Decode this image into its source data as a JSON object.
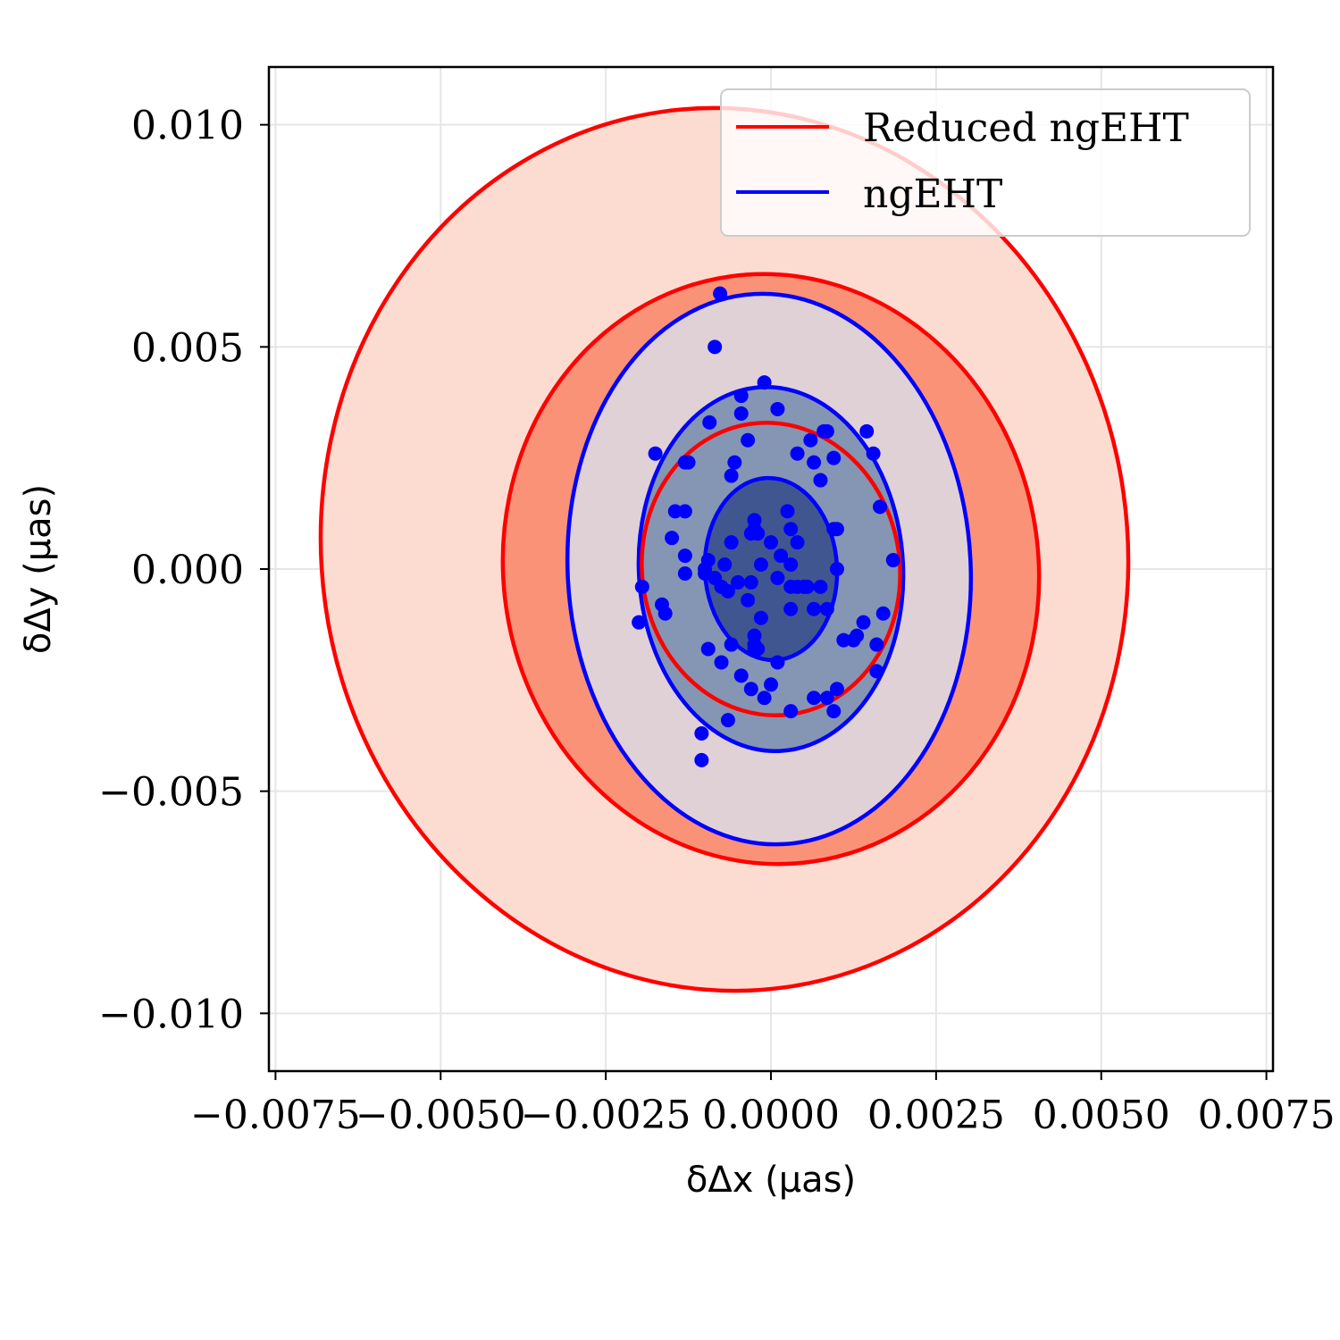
{
  "chart_data": {
    "type": "scatter",
    "xlabel": "δΔx (μas)",
    "ylabel": "δΔy (μas)",
    "xlim": [
      -0.0076,
      0.0076
    ],
    "ylim": [
      -0.0113,
      0.0113
    ],
    "xticks": [
      -0.0075,
      -0.005,
      -0.0025,
      0.0,
      0.0025,
      0.005,
      0.0075
    ],
    "xtick_labels": [
      "−0.0075",
      "−0.0050",
      "−0.0025",
      "0.0000",
      "0.0025",
      "0.0050",
      "0.0075"
    ],
    "yticks": [
      0.01,
      0.005,
      0.0,
      -0.005,
      -0.01
    ],
    "ytick_labels": [
      "0.010",
      "0.005",
      "0.000",
      "−0.005",
      "−0.010"
    ],
    "grid": true,
    "legend": {
      "placement": "top-right",
      "entries": [
        {
          "label": "Reduced ngEHT",
          "color": "#ff0000"
        },
        {
          "label": "ngEHT",
          "color": "#0000ff"
        }
      ]
    },
    "contours": [
      {
        "series": "Reduced ngEHT",
        "level": "outer",
        "cx": 0.0,
        "cy": 0.0,
        "rx": 0.0061,
        "ry": 0.00995,
        "rotation_deg": -8,
        "fill": "#fcdcd0",
        "stroke": "#ff0000"
      },
      {
        "series": "Reduced ngEHT",
        "level": "middle",
        "cx": 0.0,
        "cy": 0.0,
        "rx": 0.00405,
        "ry": 0.00665,
        "rotation_deg": -8,
        "fill": "#fa9278",
        "stroke": "#ff0000"
      },
      {
        "series": "ngEHT",
        "level": "outer",
        "cx": 0.0,
        "cy": 0.0,
        "rx": 0.00305,
        "ry": 0.0062,
        "rotation_deg": -3,
        "fill": "#dfd1d6",
        "stroke": "#0000ff"
      },
      {
        "series": "ngEHT",
        "level": "middle",
        "cx": 0.0,
        "cy": 0.0,
        "rx": 0.002,
        "ry": 0.0041,
        "rotation_deg": -3,
        "fill": "#8496b3",
        "stroke": "#0000ff"
      },
      {
        "series": "Reduced ngEHT",
        "level": "inner",
        "cx": 0.0,
        "cy": 0.0,
        "rx": 0.00195,
        "ry": 0.0033,
        "rotation_deg": -8,
        "fill": "none",
        "stroke": "#ff0000"
      },
      {
        "series": "ngEHT",
        "level": "inner",
        "cx": 0.0,
        "cy": 0.0,
        "rx": 0.001,
        "ry": 0.00205,
        "rotation_deg": -3,
        "fill": "#405691",
        "stroke": "#0000ff"
      }
    ],
    "series": [
      {
        "name": "ngEHT",
        "color": "#0000ff",
        "points": [
          [
            -0.00077,
            0.0062
          ],
          [
            -0.00085,
            0.005
          ],
          [
            -0.00045,
            0.0039
          ],
          [
            -0.0001,
            0.0042
          ],
          [
            -0.00093,
            0.0033
          ],
          [
            -0.00045,
            0.0035
          ],
          [
            0.0001,
            0.0036
          ],
          [
            -0.00035,
            0.0029
          ],
          [
            -0.00175,
            0.0026
          ],
          [
            -0.0013,
            0.0024
          ],
          [
            -0.00125,
            0.0024
          ],
          [
            -0.00055,
            0.0024
          ],
          [
            -0.0006,
            0.0021
          ],
          [
            0.0004,
            0.0026
          ],
          [
            0.0006,
            0.0029
          ],
          [
            0.0008,
            0.0031
          ],
          [
            0.00085,
            0.0031
          ],
          [
            0.00065,
            0.0024
          ],
          [
            0.00095,
            0.0025
          ],
          [
            0.00075,
            0.002
          ],
          [
            0.00145,
            0.0031
          ],
          [
            0.00155,
            0.0026
          ],
          [
            0.00165,
            0.0014
          ],
          [
            0.00185,
            0.0002
          ],
          [
            -0.00145,
            0.0013
          ],
          [
            -0.0013,
            0.0013
          ],
          [
            -0.0015,
            0.0007
          ],
          [
            -0.0013,
            0.0003
          ],
          [
            -0.0006,
            0.0006
          ],
          [
            -0.0003,
            0.0008
          ],
          [
            -0.00025,
            0.0011
          ],
          [
            -0.00025,
            0.0009
          ],
          [
            -0.0002,
            0.0008
          ],
          [
            0.0,
            0.0006
          ],
          [
            0.00025,
            0.0013
          ],
          [
            0.0003,
            0.0009
          ],
          [
            0.0004,
            0.0006
          ],
          [
            0.00015,
            0.0003
          ],
          [
            -0.00015,
            0.0001
          ],
          [
            0.0003,
            0.0001
          ],
          [
            0.00095,
            0.0009
          ],
          [
            0.001,
            0.0009
          ],
          [
            0.001,
            0.0
          ],
          [
            -0.00095,
            0.0002
          ],
          [
            -0.001,
            0.0
          ],
          [
            -0.0007,
            0.0001
          ],
          [
            -0.0013,
            -0.0001
          ],
          [
            -0.001,
            -0.0001
          ],
          [
            -0.00085,
            -0.0002
          ],
          [
            -0.0005,
            -0.0003
          ],
          [
            -0.0003,
            -0.0003
          ],
          [
            0.0001,
            -0.0002
          ],
          [
            0.0003,
            -0.0004
          ],
          [
            0.0004,
            -0.0004
          ],
          [
            0.0005,
            -0.0004
          ],
          [
            0.00055,
            -0.0004
          ],
          [
            0.00075,
            -0.0004
          ],
          [
            -0.00075,
            -0.0004
          ],
          [
            -0.00065,
            -0.0005
          ],
          [
            -0.00035,
            -0.0007
          ],
          [
            -0.00015,
            -0.0011
          ],
          [
            0.0003,
            -0.0009
          ],
          [
            0.00065,
            -0.0009
          ],
          [
            0.00085,
            -0.0009
          ],
          [
            -0.00195,
            -0.0004
          ],
          [
            -0.00165,
            -0.0008
          ],
          [
            -0.0016,
            -0.001
          ],
          [
            -0.002,
            -0.0012
          ],
          [
            -0.00025,
            -0.0015
          ],
          [
            -0.0006,
            -0.0017
          ],
          [
            -0.00025,
            -0.0017
          ],
          [
            -0.00025,
            -0.0018
          ],
          [
            -0.0002,
            -0.0018
          ],
          [
            -0.00095,
            -0.0018
          ],
          [
            -0.00075,
            -0.0021
          ],
          [
            0.0001,
            -0.0021
          ],
          [
            -0.00045,
            -0.0024
          ],
          [
            0.0,
            -0.0026
          ],
          [
            -0.0003,
            -0.0027
          ],
          [
            -0.0001,
            -0.0029
          ],
          [
            0.0003,
            -0.0032
          ],
          [
            0.00065,
            -0.0029
          ],
          [
            0.00085,
            -0.0029
          ],
          [
            0.001,
            -0.0027
          ],
          [
            0.00095,
            -0.0032
          ],
          [
            0.0011,
            -0.0016
          ],
          [
            0.00125,
            -0.0016
          ],
          [
            0.0013,
            -0.0015
          ],
          [
            0.0014,
            -0.0012
          ],
          [
            0.0016,
            -0.0017
          ],
          [
            0.0017,
            -0.001
          ],
          [
            0.0016,
            -0.0023
          ],
          [
            -0.00065,
            -0.0034
          ],
          [
            -0.00105,
            -0.0037
          ],
          [
            -0.00105,
            -0.0043
          ]
        ]
      }
    ]
  }
}
